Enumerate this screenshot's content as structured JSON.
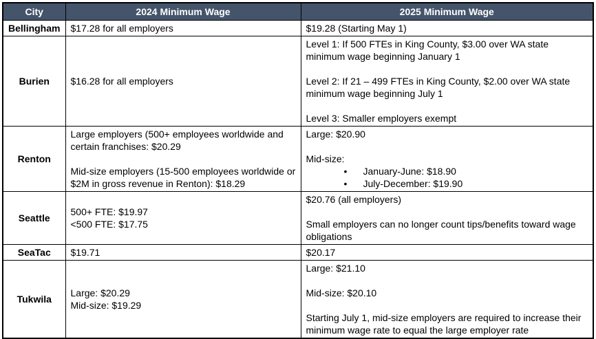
{
  "colors": {
    "header_bg": "#44546A",
    "header_text": "#FFFFFF",
    "border": "#000000"
  },
  "table": {
    "headers": [
      "City",
      "2024 Minimum Wage",
      "2025 Minimum Wage"
    ],
    "rows": [
      {
        "city": "Bellingham",
        "wage_2024": [
          [
            "p",
            "$17.28 for all employers"
          ]
        ],
        "wage_2025": [
          [
            "p",
            "$19.28 (Starting May 1)"
          ]
        ]
      },
      {
        "city": "Burien",
        "wage_2024": [
          [
            "p",
            "$16.28 for all employers"
          ]
        ],
        "wage_2025": [
          [
            "p",
            "Level 1: If 500 FTEs in King County, $3.00 over WA state minimum wage beginning January 1"
          ],
          [
            "gap"
          ],
          [
            "p",
            "Level 2: If 21 – 499 FTEs in King County, $2.00 over WA state minimum wage beginning July 1"
          ],
          [
            "gap"
          ],
          [
            "p",
            "Level 3: Smaller employers exempt"
          ]
        ]
      },
      {
        "city": "Renton",
        "wage_2024": [
          [
            "p",
            "Large employers (500+ employees worldwide and certain franchises: $20.29"
          ],
          [
            "gap"
          ],
          [
            "p",
            "Mid-size employers (15-500 employees worldwide or $2M in gross revenue in Renton): $18.29"
          ]
        ],
        "wage_2025": [
          [
            "p",
            "Large: $20.90"
          ],
          [
            "gap"
          ],
          [
            "p",
            "Mid-size:"
          ],
          [
            "ul",
            [
              "January-June: $18.90",
              "July-December: $19.90"
            ]
          ]
        ]
      },
      {
        "city": "Seattle",
        "wage_2024": [
          [
            "p",
            "500+ FTE: $19.97"
          ],
          [
            "p",
            "<500 FTE: $17.75"
          ]
        ],
        "wage_2025": [
          [
            "p",
            "$20.76 (all employers)"
          ],
          [
            "gap"
          ],
          [
            "p",
            "Small employers can no longer count tips/benefits toward wage obligations"
          ]
        ]
      },
      {
        "city": "SeaTac",
        "wage_2024": [
          [
            "p",
            "$19.71"
          ]
        ],
        "wage_2025": [
          [
            "p",
            "$20.17"
          ]
        ]
      },
      {
        "city": "Tukwila",
        "wage_2024": [
          [
            "p",
            "Large: $20.29"
          ],
          [
            "p",
            "Mid-size: $19.29"
          ]
        ],
        "wage_2025": [
          [
            "p",
            "Large: $21.10"
          ],
          [
            "gap"
          ],
          [
            "p",
            "Mid-size: $20.10"
          ],
          [
            "gap"
          ],
          [
            "p",
            "Starting July 1, mid-size employers are required to increase their minimum wage rate to equal the large employer rate"
          ]
        ]
      }
    ]
  }
}
